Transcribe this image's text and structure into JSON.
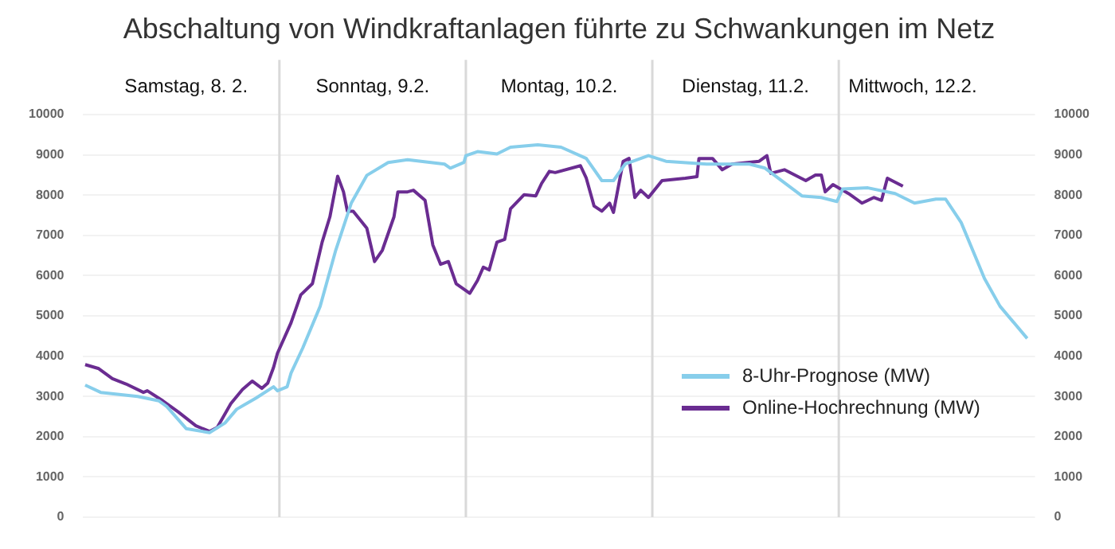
{
  "chart_data": {
    "type": "line",
    "title": "Abschaltung von Windkraftanlagen führte zu Schwankungen im Netz",
    "xlim": [
      "--02-07T22:45",
      "--02-13T01:15"
    ],
    "xticks": [
      {
        "value": "--02-08T12:00",
        "label": "Samstag, 8. 2."
      },
      {
        "value": "--02-09T12:00",
        "label": "Sonntag, 9.2."
      },
      {
        "value": "--02-10T12:00",
        "label": "Montag, 10.2."
      },
      {
        "value": "--02-11T12:00",
        "label": "Dienstag, 11.2."
      },
      {
        "value": "--02-12T09:30",
        "label": "Mittwoch, 12.2."
      }
    ],
    "ylim": [
      0,
      10000
    ],
    "yticks": [
      0,
      1000,
      2000,
      3000,
      4000,
      5000,
      6000,
      7000,
      8000,
      9000,
      10000
    ],
    "y2lim": [
      0,
      10000
    ],
    "y2ticks": [
      0,
      1000,
      2000,
      3000,
      4000,
      5000,
      6000,
      7000,
      8000,
      9000,
      10000
    ],
    "grid": "y",
    "legend": "right",
    "marker": "none",
    "line_style": "solid",
    "ref_lines": [
      {
        "axis": "x",
        "value": "--02-09",
        "color": "#d9d9d9"
      },
      {
        "axis": "x",
        "value": "--02-10",
        "color": "#d9d9d9"
      },
      {
        "axis": "x",
        "value": "--02-11",
        "color": "#d9d9d9"
      },
      {
        "axis": "x",
        "value": "--02-12",
        "color": "#d9d9d9"
      }
    ],
    "series": [
      {
        "name": "8-Uhr-Prognose (MW)",
        "color": "#87ceeb",
        "x": [
          "--02-07T23:00",
          "--02-08T01:00",
          "--02-08T05:45",
          "--02-08T08:30",
          "--02-08T09:30",
          "--02-08T12:00",
          "--02-08T15:00",
          "--02-08T17:00",
          "--02-08T18:30",
          "--02-08T21:00",
          "--02-08T23:15",
          "--02-08T23:45",
          "--02-09T01:00",
          "--02-09T01:30",
          "--02-09T03:00",
          "--02-09T05:15",
          "--02-09T07:15",
          "--02-09T09:15",
          "--02-09T11:15",
          "--02-09T14:00",
          "--02-09T16:30",
          "--02-09T21:15",
          "--02-09T22:00",
          "--02-09T23:45",
          "--02-10T00:00",
          "--02-10T01:30",
          "--02-10T04:00",
          "--02-10T05:45",
          "--02-10T09:15",
          "--02-10T12:15",
          "--02-10T15:30",
          "--02-10T17:30",
          "--02-10T19:00",
          "--02-10T20:30",
          "--02-10T23:30",
          "--02-11T01:45",
          "--02-11T07:00",
          "--02-11T12:30",
          "--02-11T14:30",
          "--02-11T19:15",
          "--02-11T21:45",
          "--02-11T23:45",
          "--02-12T00:30",
          "--02-12T03:45",
          "--02-12T07:15",
          "--02-12T09:45",
          "--02-12T12:30",
          "--02-12T13:45",
          "--02-12T15:45",
          "--02-12T18:45",
          "--02-12T20:45",
          "--02-13T00:15"
        ],
        "values": [
          3280,
          3100,
          3000,
          2890,
          2750,
          2200,
          2100,
          2340,
          2680,
          2960,
          3240,
          3140,
          3240,
          3580,
          4200,
          5240,
          6630,
          7800,
          8490,
          8810,
          8880,
          8770,
          8670,
          8810,
          8980,
          9080,
          9020,
          9190,
          9250,
          9190,
          8910,
          8360,
          8360,
          8770,
          8980,
          8840,
          8770,
          8770,
          8670,
          7980,
          7940,
          7840,
          8150,
          8180,
          8040,
          7800,
          7900,
          7900,
          7320,
          5930,
          5240,
          4440
        ]
      },
      {
        "name": "Online-Hochrechnung (MW)",
        "color": "#6a2c91",
        "x": [
          "--02-07T23:00",
          "--02-08T00:45",
          "--02-08T02:30",
          "--02-08T04:15",
          "--02-08T06:30",
          "--02-08T07:00",
          "--02-08T09:00",
          "--02-08T11:00",
          "--02-08T13:15",
          "--02-08T15:00",
          "--02-08T16:00",
          "--02-08T17:45",
          "--02-08T19:15",
          "--02-08T20:30",
          "--02-08T21:45",
          "--02-08T22:30",
          "--02-08T23:15",
          "--02-08T23:45",
          "--02-09T01:30",
          "--02-09T02:45",
          "--02-09T04:15",
          "--02-09T05:30",
          "--02-09T06:30",
          "--02-09T07:30",
          "--02-09T08:15",
          "--02-09T08:45",
          "--02-09T09:30",
          "--02-09T11:15",
          "--02-09T12:15",
          "--02-09T13:15",
          "--02-09T14:45",
          "--02-09T15:15",
          "--02-09T16:30",
          "--02-09T17:15",
          "--02-09T18:45",
          "--02-09T19:45",
          "--02-09T20:45",
          "--02-09T21:45",
          "--02-09T22:45",
          "--02-10T00:30",
          "--02-10T01:30",
          "--02-10T02:15",
          "--02-10T03:00",
          "--02-10T04:00",
          "--02-10T05:00",
          "--02-10T05:45",
          "--02-10T07:30",
          "--02-10T09:00",
          "--02-10T09:45",
          "--02-10T10:45",
          "--02-10T11:30",
          "--02-10T14:45",
          "--02-10T15:30",
          "--02-10T16:30",
          "--02-10T17:30",
          "--02-10T18:30",
          "--02-10T19:00",
          "--02-10T20:15",
          "--02-10T21:00",
          "--02-10T21:45",
          "--02-10T22:30",
          "--02-10T23:30",
          "--02-11T01:15",
          "--02-11T04:15",
          "--02-11T05:45",
          "--02-11T06:00",
          "--02-11T07:45",
          "--02-11T09:00",
          "--02-11T10:15",
          "--02-11T13:45",
          "--02-11T14:45",
          "--02-11T15:15",
          "--02-11T17:00",
          "--02-11T19:45",
          "--02-11T21:00",
          "--02-11T21:45",
          "--02-11T22:15",
          "--02-11T23:15",
          "--02-12T01:15",
          "--02-12T03:00",
          "--02-12T04:30",
          "--02-12T05:30",
          "--02-12T06:15",
          "--02-12T08:15"
        ],
        "values": [
          3790,
          3690,
          3440,
          3310,
          3100,
          3140,
          2890,
          2610,
          2270,
          2130,
          2230,
          2820,
          3170,
          3380,
          3200,
          3330,
          3720,
          4070,
          4830,
          5520,
          5800,
          6830,
          7460,
          8470,
          8080,
          7600,
          7600,
          7180,
          6350,
          6630,
          7460,
          8080,
          8080,
          8120,
          7870,
          6760,
          6280,
          6350,
          5800,
          5560,
          5880,
          6210,
          6140,
          6830,
          6900,
          7660,
          8010,
          7980,
          8290,
          8590,
          8560,
          8730,
          8420,
          7730,
          7600,
          7800,
          7570,
          8840,
          8910,
          7940,
          8120,
          7940,
          8360,
          8420,
          8460,
          8910,
          8910,
          8630,
          8770,
          8840,
          8980,
          8540,
          8630,
          8360,
          8500,
          8500,
          8080,
          8260,
          8040,
          7800,
          7940,
          7870,
          8420,
          8220
        ]
      }
    ]
  }
}
